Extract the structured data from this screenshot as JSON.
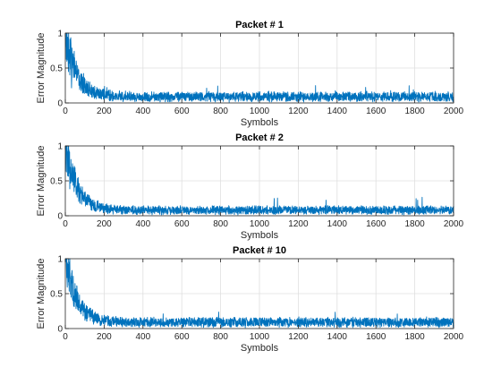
{
  "chart_data": [
    {
      "type": "line",
      "title": "Packet # 1",
      "xlabel": "Symbols",
      "ylabel": "Error Magnitude",
      "xlim": [
        0,
        2000
      ],
      "ylim": [
        0,
        1
      ],
      "xticks": [
        0,
        200,
        400,
        600,
        800,
        1000,
        1200,
        1400,
        1600,
        1800,
        2000
      ],
      "yticks": [
        0,
        0.5,
        1
      ],
      "ytick_labels": [
        "0",
        "0.5",
        "1"
      ],
      "grid": true,
      "series": [
        {
          "color": "#0072BD",
          "x_start": 1,
          "x_end": 2000,
          "initial_error": 1.0,
          "floor_mean": 0.09,
          "floor_spread": 0.08,
          "settle_symbols": 200,
          "peak_floor_error": 0.25
        }
      ]
    },
    {
      "type": "line",
      "title": "Packet # 2",
      "xlabel": "Symbols",
      "ylabel": "Error Magnitude",
      "xlim": [
        0,
        2000
      ],
      "ylim": [
        0,
        1
      ],
      "xticks": [
        0,
        200,
        400,
        600,
        800,
        1000,
        1200,
        1400,
        1600,
        1800,
        2000
      ],
      "yticks": [
        0,
        0.5,
        1
      ],
      "ytick_labels": [
        "0",
        "0.5",
        "1"
      ],
      "grid": true,
      "series": [
        {
          "color": "#0072BD",
          "x_start": 1,
          "x_end": 2000,
          "initial_error": 1.0,
          "floor_mean": 0.08,
          "floor_spread": 0.07,
          "settle_symbols": 200,
          "peak_floor_error": 0.3
        }
      ]
    },
    {
      "type": "line",
      "title": "Packet # 10",
      "xlabel": "Symbols",
      "ylabel": "Error Magnitude",
      "xlim": [
        0,
        2000
      ],
      "ylim": [
        0,
        1
      ],
      "xticks": [
        0,
        200,
        400,
        600,
        800,
        1000,
        1200,
        1400,
        1600,
        1800,
        2000
      ],
      "yticks": [
        0,
        0.5,
        1
      ],
      "ytick_labels": [
        "0",
        "0.5",
        "1"
      ],
      "grid": true,
      "series": [
        {
          "color": "#0072BD",
          "x_start": 1,
          "x_end": 2000,
          "initial_error": 1.0,
          "floor_mean": 0.09,
          "floor_spread": 0.08,
          "settle_symbols": 200,
          "peak_floor_error": 0.28
        }
      ]
    }
  ]
}
